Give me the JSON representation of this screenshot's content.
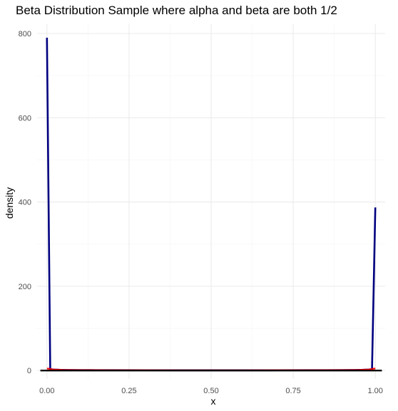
{
  "chart_data": {
    "type": "line",
    "title": "Beta Distribution Sample where alpha and beta are both 1/2",
    "xlabel": "x",
    "ylabel": "density",
    "xlim": [
      -0.03,
      1.03
    ],
    "ylim": [
      -20,
      822
    ],
    "x_ticks": [
      0.0,
      0.25,
      0.5,
      0.75,
      1.0
    ],
    "x_tick_labels": [
      "0.00",
      "0.25",
      "0.50",
      "0.75",
      "1.00"
    ],
    "y_ticks": [
      0,
      200,
      400,
      600,
      800
    ],
    "y_tick_labels": [
      "0",
      "200",
      "400",
      "600",
      "800"
    ],
    "grid": true,
    "legend": "none",
    "series": [
      {
        "color": "#000080",
        "x": [
          0.0,
          0.01,
          0.02,
          0.04,
          0.06,
          0.1,
          0.15,
          0.2,
          0.3,
          0.4,
          0.5,
          0.6,
          0.7,
          0.8,
          0.85,
          0.9,
          0.94,
          0.96,
          0.98,
          0.99,
          1.0
        ],
        "y": [
          790,
          3.2,
          2.3,
          1.6,
          1.3,
          1.06,
          0.89,
          0.8,
          0.69,
          0.65,
          0.64,
          0.65,
          0.69,
          0.8,
          0.89,
          1.06,
          1.3,
          1.6,
          2.3,
          3.2,
          387
        ]
      },
      {
        "color": "#ff0000",
        "x": [
          0.0,
          0.005,
          0.01,
          0.02,
          0.05,
          0.1,
          0.2,
          0.3,
          0.4,
          0.5,
          0.6,
          0.7,
          0.8,
          0.9,
          0.95,
          0.98,
          0.99,
          0.995,
          1.0
        ],
        "y": [
          4.5,
          4.5,
          3.2,
          2.3,
          1.46,
          1.06,
          0.8,
          0.69,
          0.65,
          0.64,
          0.65,
          0.69,
          0.8,
          1.06,
          1.46,
          2.3,
          3.2,
          4.5,
          4.5
        ]
      },
      {
        "color": "#000000",
        "x": [
          -0.02,
          1.02
        ],
        "y": [
          0,
          0
        ]
      }
    ]
  }
}
